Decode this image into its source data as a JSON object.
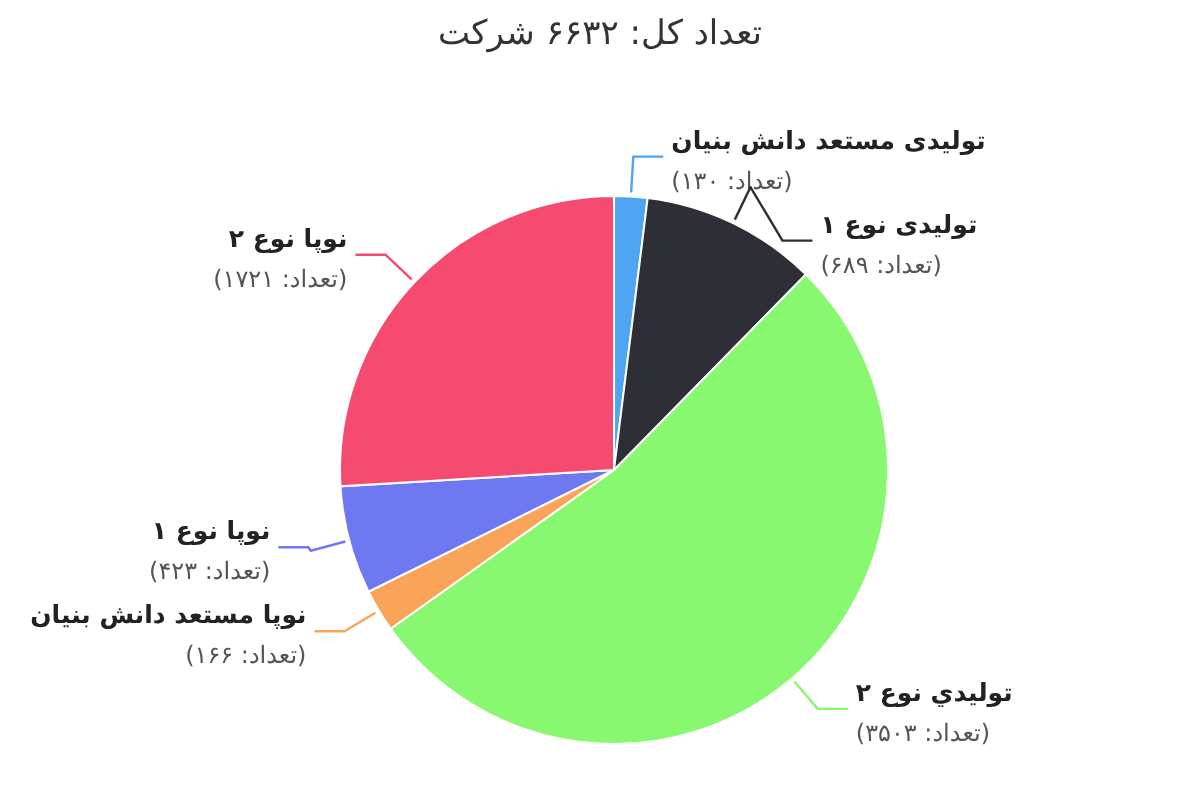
{
  "chart_data": {
    "type": "pie",
    "title": "تعداد کل: ۶۶۳۲ شرکت",
    "categories": [
      "تولیدی مستعد دانش بنیان",
      "تولیدی نوع ۱",
      "تولیدي نوع ۲",
      "نوپا مستعد دانش بنیان",
      "نوپا نوع ۱",
      "نوپا نوع ۲"
    ],
    "values": [
      130,
      689,
      3503,
      166,
      423,
      1721
    ],
    "colors": [
      "#4ea6f2",
      "#2e2f36",
      "#88f870",
      "#f9a459",
      "#6e78f0",
      "#f54b70"
    ],
    "value_labels": [
      "(تعداد: ۱۳۰)",
      "(تعداد: ۶۸۹)",
      "(تعداد: ۳۵۰۳)",
      "(تعداد: ۱۶۶)",
      "(تعداد: ۴۲۳)",
      "(تعداد: ۱۷۲۱)"
    ]
  }
}
